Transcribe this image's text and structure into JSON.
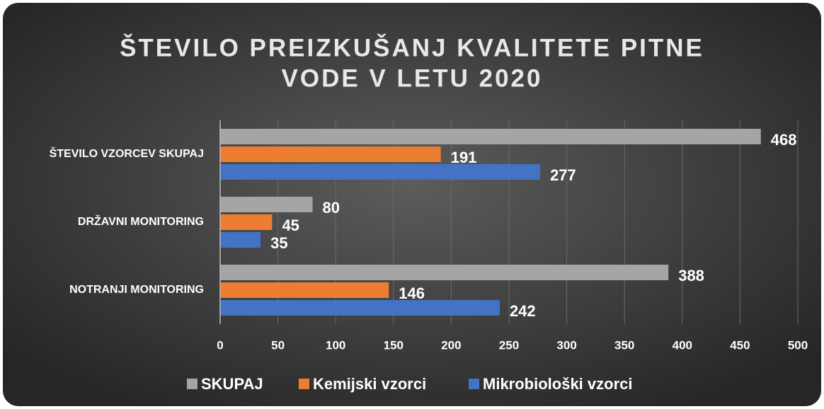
{
  "chart_data": {
    "type": "hbar",
    "title": [
      "ŠTEVILO PREIZKUŠANJ KVALITETE PITNE",
      "VODE V LETU 2020"
    ],
    "categories": [
      "ŠTEVILO VZORCEV SKUPAJ",
      "DRŽAVNI MONITORING",
      "NOTRANJI MONITORING"
    ],
    "series": [
      {
        "name": "SKUPAJ",
        "color": "#a5a5a5",
        "values": [
          468,
          80,
          388
        ]
      },
      {
        "name": "Kemijski vzorci",
        "color": "#ed7d31",
        "values": [
          191,
          45,
          146
        ]
      },
      {
        "name": "Mikrobiološki vzorci",
        "color": "#4472c4",
        "values": [
          277,
          35,
          242
        ]
      }
    ],
    "xlim": [
      0,
      500
    ],
    "xticks": [
      0,
      50,
      100,
      150,
      200,
      250,
      300,
      350,
      400,
      450,
      500
    ],
    "grid": true,
    "legend": "bottom"
  }
}
